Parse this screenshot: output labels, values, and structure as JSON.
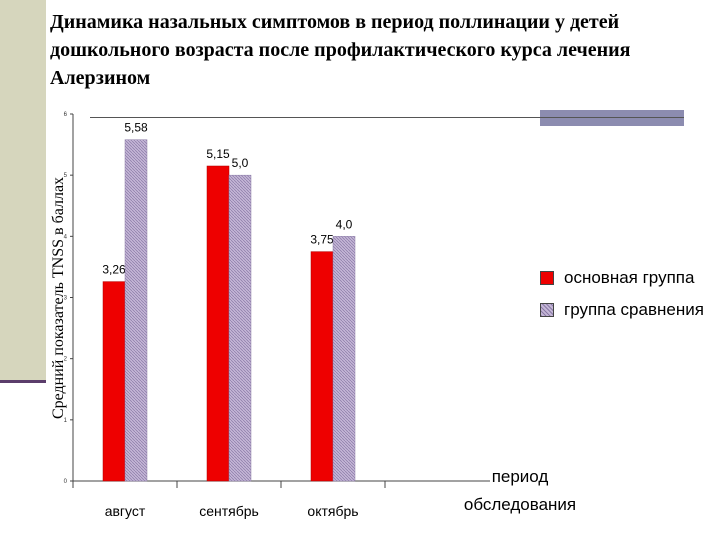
{
  "slide": {
    "title": "Динамика назальных симптомов в период поллинации у детей дошкольного возраста после профилактического курса лечения Алерзином"
  },
  "colors": {
    "main_group": "#ee0000",
    "comparison_group": "#c4b6d6",
    "side_bar": "#d6d6bd",
    "accent": "#8c8cb0"
  },
  "chart_data": {
    "type": "bar",
    "title": "",
    "categories": [
      "август",
      "сентябрь",
      "октябрь"
    ],
    "series": [
      {
        "name": "основная группа",
        "values": [
          3.26,
          5.15,
          3.75
        ],
        "labels": [
          "3,26",
          "5,15",
          "3,75"
        ]
      },
      {
        "name": "группа сравнения",
        "values": [
          5.58,
          5.0,
          4.0
        ],
        "labels": [
          "5,58",
          "5,0",
          "4,0"
        ]
      }
    ],
    "xlabel": "период обследования",
    "xlabel_lines": [
      "период",
      "обследования"
    ],
    "ylabel": "Средний показатель TNSS в баллах",
    "ylim": [
      0,
      6
    ],
    "yticks": [
      "0",
      "1",
      "2",
      "3",
      "4",
      "5",
      "6"
    ],
    "grid": false,
    "legend_position": "right"
  }
}
